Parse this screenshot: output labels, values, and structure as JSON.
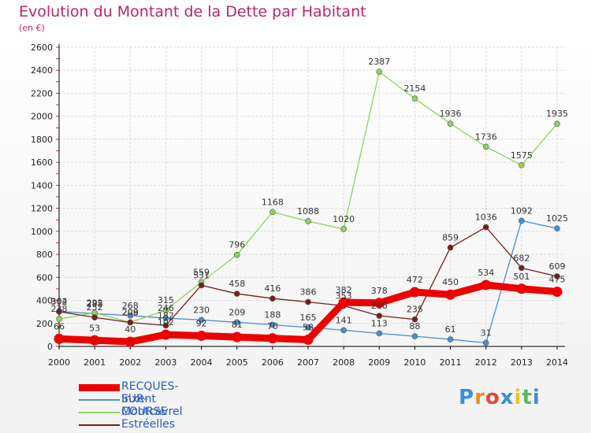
{
  "title": "Evolution du Montant de la Dette par Habitant",
  "subtitle": "(en €)",
  "logo": {
    "text": "Proxiti",
    "letters": [
      "P",
      "r",
      "o",
      "x",
      "i",
      "t",
      "i"
    ],
    "colors": [
      "#3a8fd6",
      "#f08a1c",
      "#e8443a",
      "#3a8fd6",
      "#f0c419",
      "#5cb85c",
      "#3a8fd6"
    ]
  },
  "colors": {
    "title": "#b8256c",
    "axis": "#000000",
    "grid": "#dcdcdc",
    "labels": "#333333"
  },
  "chart_data": {
    "type": "line",
    "x": [
      2000,
      2001,
      2002,
      2003,
      2004,
      2005,
      2006,
      2007,
      2008,
      2009,
      2010,
      2011,
      2012,
      2013,
      2014
    ],
    "ylim": [
      0,
      2600
    ],
    "yticks": [
      0,
      200,
      400,
      600,
      800,
      1000,
      1200,
      1400,
      1600,
      1800,
      2000,
      2200,
      2400,
      2600
    ],
    "grid": true,
    "legend_position": "bottom-left",
    "series": [
      {
        "name": "RECQUES-SUR-COURSE",
        "color": "#ee0000",
        "values": [
          66,
          53,
          40,
          102,
          92,
          81,
          70,
          58,
          382,
          378,
          472,
          450,
          534,
          501,
          475
        ],
        "labels": [
          "66",
          "53",
          "40",
          "102",
          "92",
          "81",
          "70",
          "58",
          "382",
          "378",
          "472",
          "450",
          "534",
          "501",
          "475"
        ]
      },
      {
        "name": "Inxent",
        "color": "#4a8fcc",
        "values": [
          304,
          285,
          268,
          246,
          230,
          209,
          188,
          165,
          141,
          113,
          88,
          61,
          31,
          1092,
          1025
        ],
        "labels": [
          "304",
          "285",
          "268",
          "246",
          "230",
          "209",
          "188",
          "165",
          "141",
          "113",
          "88",
          "61",
          "31",
          "1092",
          "1025"
        ]
      },
      {
        "name": "Montcavrel",
        "color": "#8ed45a",
        "values": [
          238,
          292,
          209,
          315,
          559,
          796,
          1168,
          1088,
          1020,
          2387,
          2154,
          1936,
          1736,
          1575,
          1935
        ],
        "labels": [
          "238",
          "292",
          "209",
          "315",
          "559",
          "796",
          "1168",
          "1088",
          "1020",
          "2387",
          "2154",
          "1936",
          "1736",
          "1575",
          "1935"
        ]
      },
      {
        "name": "Estréelles",
        "color": "#7a1c1c",
        "values": [
          302,
          252,
          208,
          182,
          531,
          458,
          416,
          386,
          353,
          266,
          235,
          859,
          1036,
          682,
          609
        ],
        "labels": [
          "302",
          "252",
          "208",
          "182",
          "531",
          "458",
          "416",
          "386",
          "353",
          "266",
          "235",
          "859",
          "1036",
          "682",
          "609"
        ]
      }
    ]
  }
}
